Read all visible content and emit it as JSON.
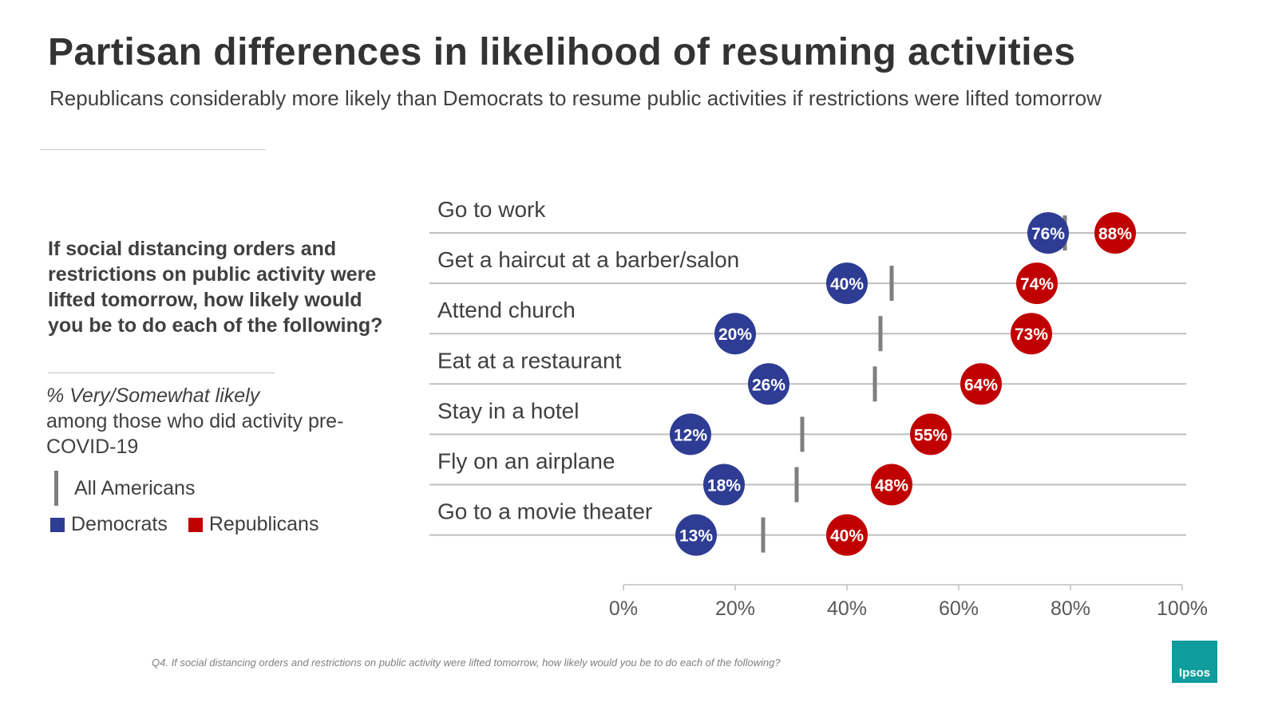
{
  "title": "Partisan differences in likelihood of resuming activities",
  "subtitle": "Republicans considerably more likely than Democrats to resume public activities if restrictions were lifted tomorrow",
  "question": "If social distancing orders and restrictions on public activity were lifted tomorrow, how likely would you be to do each of the following?",
  "measure": {
    "line1": "% Very/Somewhat likely",
    "line2": "among those who did activity pre-COVID-19"
  },
  "legend": {
    "all": "All Americans",
    "dem": "Democrats",
    "rep": "Republicans"
  },
  "footnote": "Q4. If social distancing orders and restrictions on public activity were lifted tomorrow, how likely would you be to do each of the following?",
  "logo": "Ipsos",
  "colors": {
    "dem": "#2e3c94",
    "rep": "#c00000",
    "all": "#7f7f7f",
    "gridline": "#bfbfbf"
  },
  "chart_data": {
    "type": "dot",
    "categories": [
      "Go to work",
      "Get a haircut at a barber/salon",
      "Attend church",
      "Eat at a restaurant",
      "Stay in a hotel",
      "Fly on an airplane",
      "Go to a movie theater"
    ],
    "series": [
      {
        "name": "Democrats",
        "values": [
          76,
          40,
          20,
          26,
          12,
          18,
          13
        ],
        "labels": [
          "76%",
          "40%",
          "20%",
          "26%",
          "12%",
          "18%",
          "13%"
        ]
      },
      {
        "name": "Republicans",
        "values": [
          88,
          74,
          73,
          64,
          55,
          48,
          40
        ],
        "labels": [
          "88%",
          "74%",
          "73%",
          "64%",
          "55%",
          "48%",
          "40%"
        ]
      },
      {
        "name": "All Americans",
        "values": [
          79,
          48,
          46,
          45,
          32,
          31,
          25
        ]
      }
    ],
    "xlim": [
      0,
      100
    ],
    "xticks": [
      "0%",
      "20%",
      "40%",
      "60%",
      "80%",
      "100%"
    ]
  }
}
